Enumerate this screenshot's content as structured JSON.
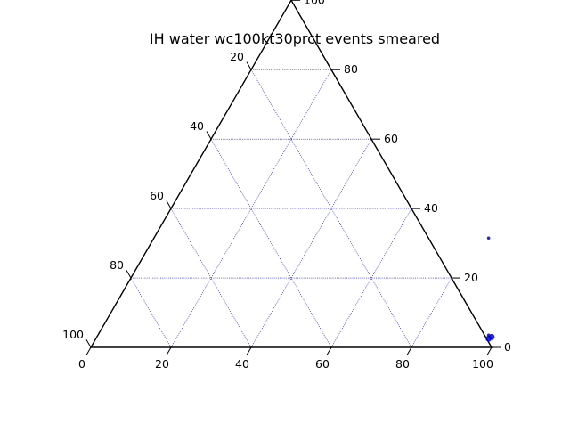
{
  "chart_data": {
    "type": "scatter",
    "subtype": "ternary",
    "title": "IH water wc100kt30prct events smeared",
    "axes": {
      "bottom": {
        "ticks": [
          "0",
          "20",
          "40",
          "60",
          "80",
          "100"
        ],
        "range": [
          0,
          100
        ]
      },
      "right": {
        "ticks": [
          "0",
          "20",
          "40",
          "60",
          "80",
          "100"
        ],
        "range": [
          0,
          100
        ]
      },
      "left": {
        "ticks": [
          "0",
          "20",
          "40",
          "60",
          "80",
          "100"
        ],
        "range": [
          0,
          100
        ]
      }
    },
    "grid": true,
    "grid_color": "#0000cc",
    "frame_color": "#000000",
    "marker_color": "#0000cc",
    "points": [
      {
        "bottom": 98,
        "right": 2.5,
        "left": -0.5,
        "size": "large"
      },
      {
        "bottom": 98.5,
        "right": 3,
        "left": -1.5,
        "size": "large"
      },
      {
        "bottom": 97.5,
        "right": 3.5,
        "left": -1,
        "size": "small"
      },
      {
        "bottom": 83.5,
        "right": 31.5,
        "left": -15,
        "size": "small"
      }
    ]
  }
}
